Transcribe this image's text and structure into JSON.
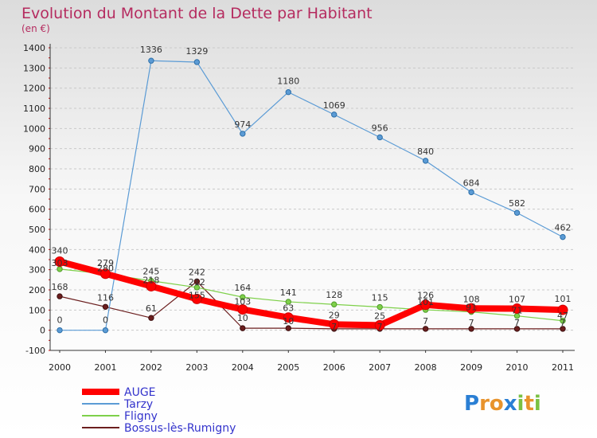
{
  "chart_data": {
    "type": "line",
    "title": "Evolution du Montant de la Dette par Habitant",
    "subtitle": "(en €)",
    "x": [
      "2000",
      "2001",
      "2002",
      "2003",
      "2004",
      "2005",
      "2006",
      "2007",
      "2008",
      "2009",
      "2010",
      "2011"
    ],
    "ylim": [
      -100,
      1400
    ],
    "yticks": [
      -100,
      0,
      100,
      200,
      300,
      400,
      500,
      600,
      700,
      800,
      900,
      1000,
      1100,
      1200,
      1300,
      1400
    ],
    "grid": "horizontal-dashed",
    "legend_position": "bottom-left",
    "series": [
      {
        "name": "AUGE",
        "color": "#ff0000",
        "values": [
          340,
          280,
          218,
          155,
          103,
          63,
          29,
          25,
          126,
          108,
          107,
          101
        ]
      },
      {
        "name": "Tarzy",
        "color": "#5b9bd5",
        "values": [
          0,
          0,
          1336,
          1329,
          974,
          1180,
          1069,
          956,
          840,
          684,
          582,
          462
        ]
      },
      {
        "name": "Fligny",
        "color": "#7ed04a",
        "values": [
          303,
          279,
          245,
          212,
          164,
          141,
          128,
          115,
          101,
          91,
          71,
          47
        ]
      },
      {
        "name": "Bossus-lès-Rumigny",
        "color": "#6b1e1e",
        "values": [
          168,
          116,
          61,
          242,
          10,
          10,
          7,
          7,
          7,
          7,
          7,
          7
        ]
      }
    ],
    "data_labels": [
      {
        "text": "340",
        "x": "2000",
        "y": 340,
        "dy": -10
      },
      {
        "text": "303",
        "x": "2000",
        "y": 303,
        "dy": -4
      },
      {
        "text": "168",
        "x": "2000",
        "y": 168,
        "dy": -8
      },
      {
        "text": "0",
        "x": "2000",
        "y": 0,
        "dy": -9
      },
      {
        "text": "279",
        "x": "2001",
        "y": 279,
        "dy": -10
      },
      {
        "text": "280",
        "x": "2001",
        "y": 280,
        "dy": -3
      },
      {
        "text": "116",
        "x": "2001",
        "y": 116,
        "dy": -8
      },
      {
        "text": "0",
        "x": "2001",
        "y": 0,
        "dy": -9
      },
      {
        "text": "1336",
        "x": "2002",
        "y": 1336,
        "dy": -10
      },
      {
        "text": "245",
        "x": "2002",
        "y": 245,
        "dy": -8
      },
      {
        "text": "218",
        "x": "2002",
        "y": 218,
        "dy": -4
      },
      {
        "text": "61",
        "x": "2002",
        "y": 61,
        "dy": -8
      },
      {
        "text": "1329",
        "x": "2003",
        "y": 1329,
        "dy": -10
      },
      {
        "text": "242",
        "x": "2003",
        "y": 242,
        "dy": -8
      },
      {
        "text": "212",
        "x": "2003",
        "y": 212,
        "dy": -3
      },
      {
        "text": "155",
        "x": "2003",
        "y": 155,
        "dy": -1
      },
      {
        "text": "974",
        "x": "2004",
        "y": 974,
        "dy": -8
      },
      {
        "text": "164",
        "x": "2004",
        "y": 164,
        "dy": -8
      },
      {
        "text": "103",
        "x": "2004",
        "y": 103,
        "dy": -6
      },
      {
        "text": "10",
        "x": "2004",
        "y": 10,
        "dy": -9
      },
      {
        "text": "1180",
        "x": "2005",
        "y": 1180,
        "dy": -10
      },
      {
        "text": "141",
        "x": "2005",
        "y": 141,
        "dy": -8
      },
      {
        "text": "63",
        "x": "2005",
        "y": 63,
        "dy": -8
      },
      {
        "text": "10",
        "x": "2005",
        "y": 10,
        "dy": -5
      },
      {
        "text": "1069",
        "x": "2006",
        "y": 1069,
        "dy": -8
      },
      {
        "text": "128",
        "x": "2006",
        "y": 128,
        "dy": -8
      },
      {
        "text": "29",
        "x": "2006",
        "y": 29,
        "dy": -8
      },
      {
        "text": "7",
        "x": "2006",
        "y": 7,
        "dy": 1
      },
      {
        "text": "956",
        "x": "2007",
        "y": 956,
        "dy": -8
      },
      {
        "text": "115",
        "x": "2007",
        "y": 115,
        "dy": -8
      },
      {
        "text": "25",
        "x": "2007",
        "y": 25,
        "dy": -8
      },
      {
        "text": "7",
        "x": "2007",
        "y": 7,
        "dy": 1
      },
      {
        "text": "840",
        "x": "2008",
        "y": 840,
        "dy": -8
      },
      {
        "text": "126",
        "x": "2008",
        "y": 126,
        "dy": -8
      },
      {
        "text": "101",
        "x": "2008",
        "y": 101,
        "dy": -6
      },
      {
        "text": "7",
        "x": "2008",
        "y": 7,
        "dy": -6
      },
      {
        "text": "684",
        "x": "2009",
        "y": 684,
        "dy": -8
      },
      {
        "text": "108",
        "x": "2009",
        "y": 108,
        "dy": -8
      },
      {
        "text": "91",
        "x": "2009",
        "y": 91,
        "dy": -2
      },
      {
        "text": "7",
        "x": "2009",
        "y": 7,
        "dy": -4
      },
      {
        "text": "582",
        "x": "2010",
        "y": 582,
        "dy": -8
      },
      {
        "text": "107",
        "x": "2010",
        "y": 107,
        "dy": -8
      },
      {
        "text": "71",
        "x": "2010",
        "y": 71,
        "dy": -3
      },
      {
        "text": "7",
        "x": "2010",
        "y": 7,
        "dy": -4
      },
      {
        "text": "462",
        "x": "2011",
        "y": 462,
        "dy": -8
      },
      {
        "text": "101",
        "x": "2011",
        "y": 101,
        "dy": -10
      },
      {
        "text": "47",
        "x": "2011",
        "y": 47,
        "dy": -3
      },
      {
        "text": "7",
        "x": "2011",
        "y": 7,
        "dy": -4
      }
    ]
  },
  "brand": {
    "letters": [
      "P",
      "r",
      "o",
      "x",
      "i",
      "t",
      "i"
    ],
    "colors": [
      "#2a7fd4",
      "#e8932c",
      "#e8932c",
      "#2a7fd4",
      "#7ac143",
      "#e8932c",
      "#7ac143"
    ]
  }
}
